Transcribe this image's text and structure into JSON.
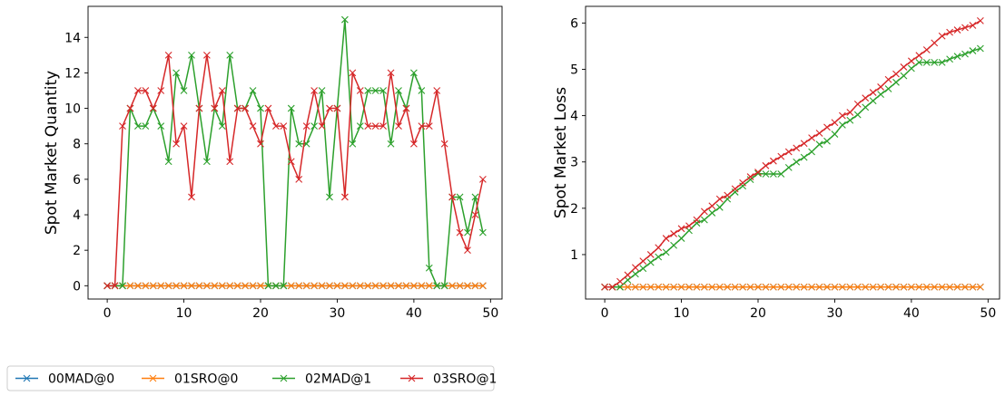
{
  "colors": {
    "00MAD@0": "#1f77b4",
    "01SRO@0": "#ff7f0e",
    "02MAD@1": "#2ca02c",
    "03SRO@1": "#d62728"
  },
  "legend": {
    "location": "bottom-left",
    "entries": [
      "00MAD@0",
      "01SRO@0",
      "02MAD@1",
      "03SRO@1"
    ]
  },
  "chart_data": [
    {
      "type": "line",
      "ylabel": "Spot Market Quantity",
      "xlim": [
        -2.5,
        51.5
      ],
      "ylim": [
        -0.75,
        15.75
      ],
      "xticks": [
        0,
        10,
        20,
        30,
        40,
        50
      ],
      "yticks": [
        0,
        2,
        4,
        6,
        8,
        10,
        12,
        14
      ],
      "grid": false,
      "marker": "x",
      "series": [
        {
          "name": "00MAD@0",
          "values": [
            0,
            0,
            0,
            0,
            0,
            0,
            0,
            0,
            0,
            0,
            0,
            0,
            0,
            0,
            0,
            0,
            0,
            0,
            0,
            0,
            0,
            0,
            0,
            0,
            0,
            0,
            0,
            0,
            0,
            0,
            0,
            0,
            0,
            0,
            0,
            0,
            0,
            0,
            0,
            0,
            0,
            0,
            0,
            0,
            0,
            0,
            0,
            0,
            0,
            0
          ]
        },
        {
          "name": "01SRO@0",
          "values": [
            0,
            0,
            0,
            0,
            0,
            0,
            0,
            0,
            0,
            0,
            0,
            0,
            0,
            0,
            0,
            0,
            0,
            0,
            0,
            0,
            0,
            0,
            0,
            0,
            0,
            0,
            0,
            0,
            0,
            0,
            0,
            0,
            0,
            0,
            0,
            0,
            0,
            0,
            0,
            0,
            0,
            0,
            0,
            0,
            0,
            0,
            0,
            0,
            0,
            0
          ]
        },
        {
          "name": "02MAD@1",
          "values": [
            0,
            0,
            0,
            10,
            9,
            9,
            10,
            9,
            7,
            12,
            11,
            13,
            10,
            7,
            10,
            9,
            13,
            10,
            10,
            11,
            10,
            0,
            0,
            0,
            10,
            8,
            8,
            9,
            11,
            5,
            10,
            15,
            8,
            9,
            11,
            11,
            11,
            8,
            11,
            10,
            12,
            11,
            1,
            0,
            0,
            5,
            5,
            3,
            5,
            3
          ]
        },
        {
          "name": "03SRO@1",
          "values": [
            0,
            0,
            9,
            10,
            11,
            11,
            10,
            11,
            13,
            8,
            9,
            5,
            10,
            13,
            10,
            11,
            7,
            10,
            10,
            9,
            8,
            10,
            9,
            9,
            7,
            6,
            9,
            11,
            9,
            10,
            10,
            5,
            12,
            11,
            9,
            9,
            9,
            12,
            9,
            10,
            8,
            9,
            9,
            11,
            8,
            5,
            3,
            2,
            4,
            6
          ]
        }
      ]
    },
    {
      "type": "line",
      "ylabel": "Spot Market Loss",
      "xlim": [
        -2.5,
        51.5
      ],
      "ylim": [
        0.04,
        6.36
      ],
      "xticks": [
        0,
        10,
        20,
        30,
        40,
        50
      ],
      "yticks": [
        1,
        2,
        3,
        4,
        5,
        6
      ],
      "grid": false,
      "marker": "x",
      "series": [
        {
          "name": "00MAD@0",
          "values": [
            0.3,
            0.3,
            0.3,
            0.3,
            0.3,
            0.3,
            0.3,
            0.3,
            0.3,
            0.3,
            0.3,
            0.3,
            0.3,
            0.3,
            0.3,
            0.3,
            0.3,
            0.3,
            0.3,
            0.3,
            0.3,
            0.3,
            0.3,
            0.3,
            0.3,
            0.3,
            0.3,
            0.3,
            0.3,
            0.3,
            0.3,
            0.3,
            0.3,
            0.3,
            0.3,
            0.3,
            0.3,
            0.3,
            0.3,
            0.3,
            0.3,
            0.3,
            0.3,
            0.3,
            0.3,
            0.3,
            0.3,
            0.3,
            0.3,
            0.3
          ]
        },
        {
          "name": "01SRO@0",
          "values": [
            0.3,
            0.3,
            0.3,
            0.3,
            0.3,
            0.3,
            0.3,
            0.3,
            0.3,
            0.3,
            0.3,
            0.3,
            0.3,
            0.3,
            0.3,
            0.3,
            0.3,
            0.3,
            0.3,
            0.3,
            0.3,
            0.3,
            0.3,
            0.3,
            0.3,
            0.3,
            0.3,
            0.3,
            0.3,
            0.3,
            0.3,
            0.3,
            0.3,
            0.3,
            0.3,
            0.3,
            0.3,
            0.3,
            0.3,
            0.3,
            0.3,
            0.3,
            0.3,
            0.3,
            0.3,
            0.3,
            0.3,
            0.3,
            0.3,
            0.3
          ]
        },
        {
          "name": "02MAD@1",
          "values": [
            0.3,
            0.3,
            0.3,
            0.45,
            0.58,
            0.7,
            0.83,
            0.95,
            1.05,
            1.2,
            1.35,
            1.52,
            1.68,
            1.75,
            1.9,
            2.02,
            2.2,
            2.35,
            2.48,
            2.62,
            2.75,
            2.74,
            2.74,
            2.74,
            2.88,
            3.0,
            3.1,
            3.22,
            3.38,
            3.45,
            3.6,
            3.8,
            3.9,
            4.02,
            4.18,
            4.32,
            4.46,
            4.58,
            4.72,
            4.86,
            5.02,
            5.15,
            5.15,
            5.15,
            5.15,
            5.22,
            5.28,
            5.33,
            5.4,
            5.45
          ]
        },
        {
          "name": "03SRO@1",
          "values": [
            0.3,
            0.3,
            0.42,
            0.56,
            0.72,
            0.86,
            1.0,
            1.15,
            1.35,
            1.45,
            1.56,
            1.62,
            1.75,
            1.93,
            2.05,
            2.2,
            2.28,
            2.42,
            2.55,
            2.68,
            2.78,
            2.92,
            3.02,
            3.12,
            3.22,
            3.3,
            3.4,
            3.52,
            3.62,
            3.75,
            3.85,
            4.0,
            4.07,
            4.25,
            4.38,
            4.5,
            4.62,
            4.78,
            4.9,
            5.05,
            5.18,
            5.3,
            5.42,
            5.57,
            5.72,
            5.8,
            5.85,
            5.9,
            5.95,
            6.05
          ]
        }
      ]
    }
  ]
}
